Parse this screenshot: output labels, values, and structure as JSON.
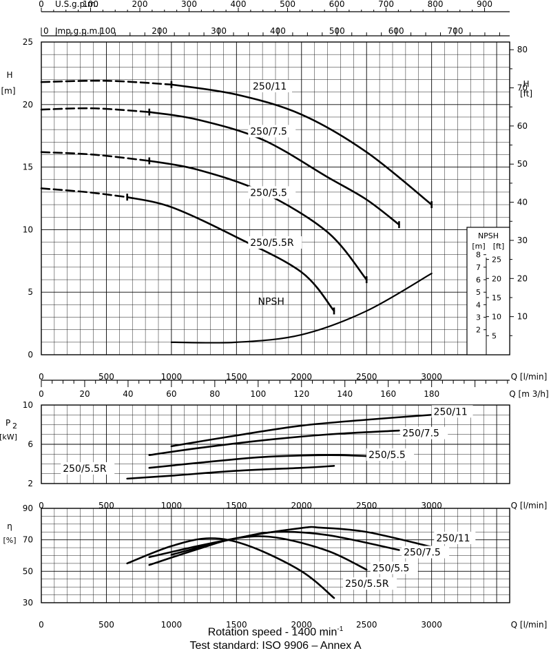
{
  "footer": {
    "speed_text": "Rotation speed  - 1400 min",
    "speed_sup": "-1",
    "standard": "Test standard: ISO 9906 – Annex A"
  },
  "chart_data": [
    {
      "type": "line",
      "panel": "head",
      "xlabel": "Q  [l/min]",
      "ylabel": "H",
      "ylabel_unit": "[m]",
      "ylabel_right": "H",
      "ylabel_right_unit": "[ft]",
      "xlim": [
        0,
        3600
      ],
      "ylim": [
        0,
        25
      ],
      "x_ticks": [
        0,
        500,
        1000,
        1500,
        2000,
        2500,
        3000
      ],
      "y_ticks": [
        0,
        5,
        10,
        15,
        20,
        25
      ],
      "y_ticks_ft": [
        10,
        20,
        30,
        40,
        50,
        60,
        70,
        80
      ],
      "grid": true,
      "series": [
        {
          "name": "250/11",
          "dashed": [
            [
              0,
              21.8
            ],
            [
              500,
              21.9
            ],
            [
              1000,
              21.6
            ]
          ],
          "points": [
            [
              1000,
              21.6
            ],
            [
              1500,
              20.8
            ],
            [
              2000,
              19.2
            ],
            [
              2500,
              16.2
            ],
            [
              3000,
              12.0
            ]
          ],
          "label_at": [
            1620,
            21.2
          ]
        },
        {
          "name": "250/7.5",
          "dashed": [
            [
              0,
              19.6
            ],
            [
              400,
              19.7
            ],
            [
              830,
              19.4
            ]
          ],
          "points": [
            [
              830,
              19.4
            ],
            [
              1200,
              18.8
            ],
            [
              1700,
              17.2
            ],
            [
              2200,
              14.2
            ],
            [
              2500,
              12.4
            ],
            [
              2750,
              10.4
            ]
          ],
          "label_at": [
            1600,
            17.6
          ]
        },
        {
          "name": "250/5.5",
          "dashed": [
            [
              0,
              16.2
            ],
            [
              400,
              16.0
            ],
            [
              830,
              15.5
            ]
          ],
          "points": [
            [
              830,
              15.5
            ],
            [
              1200,
              14.8
            ],
            [
              1700,
              13.0
            ],
            [
              2200,
              9.8
            ],
            [
              2500,
              6.0
            ]
          ],
          "label_at": [
            1600,
            12.7
          ]
        },
        {
          "name": "250/5.5R",
          "dashed": [
            [
              0,
              13.3
            ],
            [
              350,
              13.0
            ],
            [
              660,
              12.6
            ]
          ],
          "points": [
            [
              660,
              12.6
            ],
            [
              1000,
              11.8
            ],
            [
              1500,
              9.4
            ],
            [
              2000,
              6.6
            ],
            [
              2250,
              3.5
            ]
          ],
          "label_at": [
            1600,
            8.7
          ]
        },
        {
          "name": "NPSH",
          "npsh": true,
          "points": [
            [
              1000,
              1.0
            ],
            [
              1500,
              1.0
            ],
            [
              2000,
              1.6
            ],
            [
              2500,
              3.5
            ],
            [
              3000,
              6.5
            ]
          ],
          "label_at": [
            1660,
            4.0
          ]
        }
      ],
      "npsh_box": {
        "title": "NPSH",
        "unit_m": "[m]",
        "unit_ft": "[ft]",
        "ticks_m": [
          2,
          3,
          4,
          5,
          6,
          7,
          8
        ],
        "ticks_ft": [
          5,
          10,
          15,
          20,
          25
        ]
      },
      "top_axis_usgpm": {
        "label": "U.S.g.p.m.",
        "ticks": [
          0,
          100,
          200,
          300,
          400,
          500,
          600,
          700,
          800,
          900
        ]
      },
      "top_axis_impgpm": {
        "label": "Imp.g.p.m.",
        "ticks": [
          0,
          100,
          200,
          300,
          400,
          500,
          600,
          700
        ]
      }
    },
    {
      "type": "axis",
      "panel": "m3h",
      "xlabel": "Q  [m 3/h]",
      "ticks": [
        0,
        20,
        40,
        60,
        80,
        100,
        120,
        140,
        160,
        180
      ]
    },
    {
      "type": "line",
      "panel": "power",
      "ylabel": "P",
      "ylabel_sub": "2",
      "ylabel_unit": "[kW]",
      "xlabel": "Q  [l/min]",
      "xlim": [
        0,
        3600
      ],
      "ylim": [
        2,
        10
      ],
      "x_ticks": [
        0,
        500,
        1000,
        1500,
        2000,
        2500,
        3000
      ],
      "y_ticks": [
        2,
        6,
        10
      ],
      "grid": true,
      "series": [
        {
          "name": "250/11",
          "points": [
            [
              1000,
              5.8
            ],
            [
              1500,
              6.9
            ],
            [
              2000,
              7.9
            ],
            [
              2500,
              8.5
            ],
            [
              3000,
              9.0
            ]
          ],
          "label_at": [
            3010,
            9.0
          ]
        },
        {
          "name": "250/7.5",
          "points": [
            [
              830,
              4.9
            ],
            [
              1200,
              5.6
            ],
            [
              1700,
              6.4
            ],
            [
              2200,
              7.0
            ],
            [
              2750,
              7.4
            ]
          ],
          "label_at": [
            2770,
            6.8
          ]
        },
        {
          "name": "250/5.5",
          "points": [
            [
              830,
              3.6
            ],
            [
              1200,
              4.1
            ],
            [
              1700,
              4.7
            ],
            [
              2200,
              4.9
            ],
            [
              2500,
              4.8
            ]
          ],
          "label_at": [
            2510,
            4.6
          ]
        },
        {
          "name": "250/5.5R",
          "points": [
            [
              660,
              2.5
            ],
            [
              1000,
              2.8
            ],
            [
              1500,
              3.3
            ],
            [
              2000,
              3.6
            ],
            [
              2250,
              3.8
            ]
          ],
          "label_at": [
            160,
            3.2
          ]
        }
      ]
    },
    {
      "type": "line",
      "panel": "efficiency",
      "ylabel": "η",
      "ylabel_unit": "[%]",
      "xlabel": "Q  [l/min]",
      "xlim": [
        0,
        3600
      ],
      "ylim": [
        30,
        90
      ],
      "x_ticks": [
        0,
        500,
        1000,
        1500,
        2000,
        2500,
        3000
      ],
      "y_ticks": [
        30,
        50,
        70,
        90
      ],
      "grid": true,
      "series": [
        {
          "name": "250/11",
          "points": [
            [
              1000,
              60.5
            ],
            [
              1500,
              71.0
            ],
            [
              2000,
              77.5
            ],
            [
              2150,
              77.7
            ],
            [
              2500,
              75.0
            ],
            [
              3000,
              65.5
            ]
          ],
          "label_at": [
            3030,
            69.0
          ]
        },
        {
          "name": "250/7.5",
          "points": [
            [
              830,
              59.0
            ],
            [
              1200,
              66.0
            ],
            [
              1500,
              71.0
            ],
            [
              1800,
              75.0
            ],
            [
              2200,
              73.0
            ],
            [
              2750,
              63.5
            ]
          ],
          "label_at": [
            2780,
            60.0
          ]
        },
        {
          "name": "250/5.5",
          "points": [
            [
              830,
              54.0
            ],
            [
              1200,
              64.0
            ],
            [
              1500,
              71.0
            ],
            [
              1800,
              71.5
            ],
            [
              2200,
              63.0
            ],
            [
              2500,
              51.0
            ]
          ],
          "label_at": [
            2540,
            50.0
          ]
        },
        {
          "name": "250/5.5R",
          "points": [
            [
              660,
              55.0
            ],
            [
              1000,
              66.0
            ],
            [
              1300,
              71.0
            ],
            [
              1600,
              66.0
            ],
            [
              2000,
              50.0
            ],
            [
              2250,
              33.0
            ]
          ],
          "label_at": [
            2330,
            40.0
          ]
        }
      ]
    }
  ]
}
